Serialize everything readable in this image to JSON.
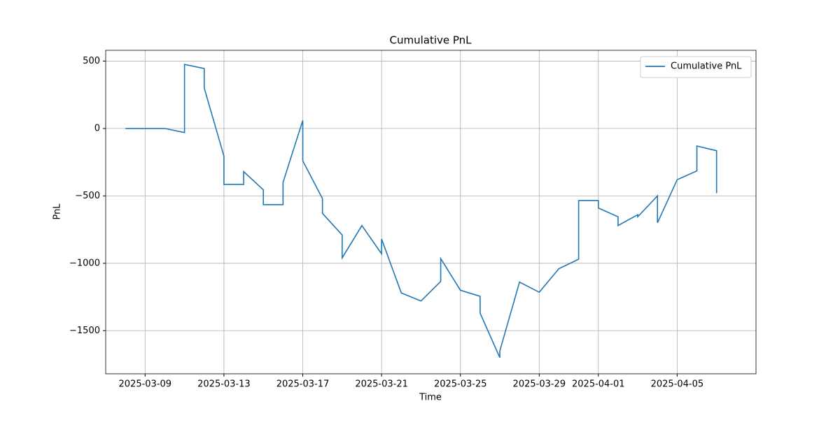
{
  "chart_data": {
    "type": "line",
    "title": "Cumulative PnL",
    "x_label": "Time",
    "y_label": "PnL",
    "x": [
      "2025-03-08",
      "2025-03-09",
      "2025-03-10",
      "2025-03-11",
      "2025-03-11",
      "2025-03-12",
      "2025-03-12",
      "2025-03-13",
      "2025-03-13",
      "2025-03-14",
      "2025-03-14",
      "2025-03-15",
      "2025-03-15",
      "2025-03-16",
      "2025-03-16",
      "2025-03-17",
      "2025-03-17",
      "2025-03-18",
      "2025-03-18",
      "2025-03-19",
      "2025-03-19",
      "2025-03-20",
      "2025-03-21",
      "2025-03-21",
      "2025-03-22",
      "2025-03-23",
      "2025-03-24",
      "2025-03-24",
      "2025-03-25",
      "2025-03-26",
      "2025-03-26",
      "2025-03-27",
      "2025-03-27",
      "2025-03-28",
      "2025-03-29",
      "2025-03-30",
      "2025-03-31",
      "2025-03-31",
      "2025-04-01",
      "2025-04-01",
      "2025-04-02",
      "2025-04-02",
      "2025-04-03",
      "2025-04-03",
      "2025-04-04",
      "2025-04-04",
      "2025-04-05",
      "2025-04-06",
      "2025-04-06",
      "2025-04-07",
      "2025-04-07",
      "2025-04-07"
    ],
    "series": [
      {
        "name": "Cumulative PnL",
        "color": "#1f77b4",
        "values": [
          0,
          0,
          0,
          -30,
          475,
          445,
          300,
          -205,
          -415,
          -415,
          -320,
          -455,
          -565,
          -565,
          -400,
          60,
          -240,
          -520,
          -630,
          -790,
          -960,
          -720,
          -930,
          -820,
          -1220,
          -1280,
          -1135,
          -965,
          -1200,
          -1245,
          -1370,
          -1700,
          -1650,
          -1140,
          -1215,
          -1040,
          -970,
          -535,
          -535,
          -590,
          -655,
          -720,
          -640,
          -655,
          -500,
          -700,
          -380,
          -315,
          -130,
          -165,
          -480,
          -410
        ]
      }
    ],
    "xlim": [
      "2025-03-07",
      "2025-04-09"
    ],
    "xticks": [
      "2025-03-09",
      "2025-03-13",
      "2025-03-17",
      "2025-03-21",
      "2025-03-25",
      "2025-03-29",
      "2025-04-01",
      "2025-04-05"
    ],
    "ylim": [
      -1820,
      580
    ],
    "yticks": [
      {
        "value": -1500,
        "label": "−1500"
      },
      {
        "value": -1000,
        "label": "−1000"
      },
      {
        "value": -500,
        "label": "−500"
      },
      0,
      500
    ],
    "grid": true,
    "legend": "upper right"
  }
}
